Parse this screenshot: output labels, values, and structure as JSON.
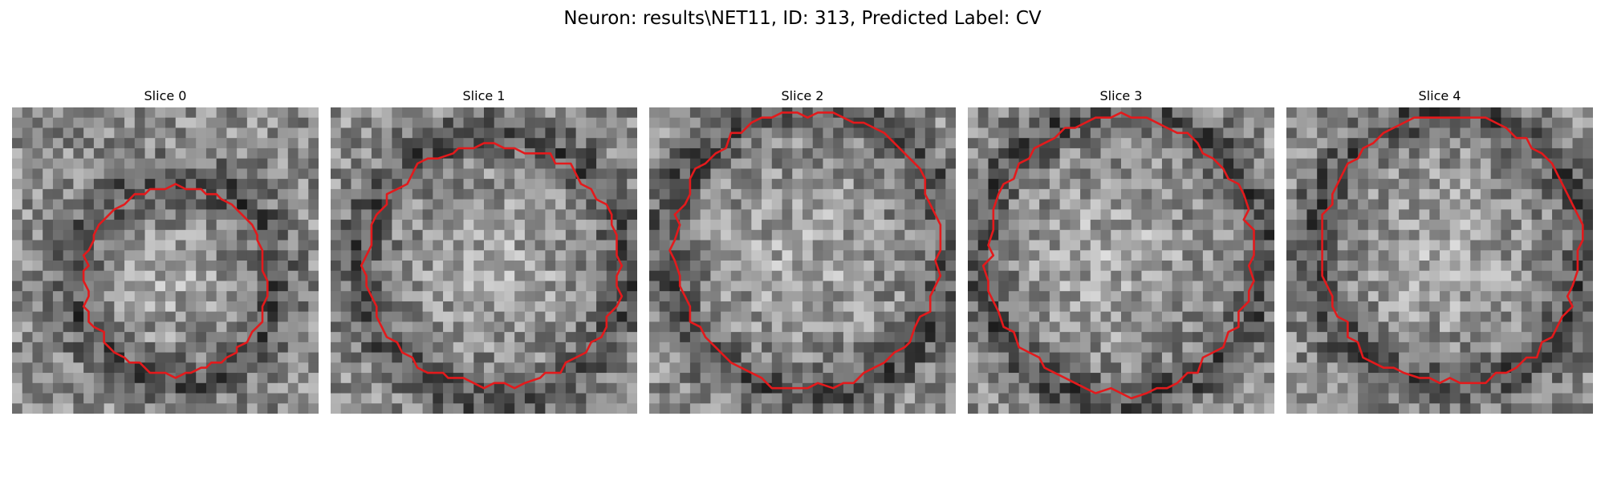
{
  "figure": {
    "title": "Neuron: results\\NET11, ID: 313, Predicted Label: CV",
    "contour_color": "#e31a1c",
    "colormap": "gray",
    "grid": "30x30 pixels per slice",
    "panels": [
      {
        "title": "Slice 0",
        "center": [
          16.0,
          17.0
        ],
        "radii": [
          9.0,
          9.2
        ],
        "bright_zone": [
          15.0,
          17.0,
          6.5
        ],
        "dark_ring": [
          16.0,
          17.0,
          10.0
        ]
      },
      {
        "title": "Slice 1",
        "center": [
          16.0,
          15.5
        ],
        "radii": [
          12.5,
          11.8
        ],
        "bright_zone": [
          16.0,
          16.0,
          8.5
        ],
        "dark_ring": [
          16.0,
          15.5,
          13.0
        ]
      },
      {
        "title": "Slice 2",
        "center": [
          15.5,
          14.0
        ],
        "radii": [
          13.0,
          13.5
        ],
        "bright_zone": [
          15.0,
          15.0,
          9.5
        ],
        "dark_ring": [
          15.5,
          14.0,
          14.0
        ]
      },
      {
        "title": "Slice 3",
        "center": [
          15.0,
          14.5
        ],
        "radii": [
          13.0,
          13.5
        ],
        "bright_zone": [
          14.0,
          14.5,
          10.0
        ],
        "dark_ring": [
          15.0,
          14.5,
          14.0
        ]
      },
      {
        "title": "Slice 4",
        "center": [
          16.0,
          14.0
        ],
        "radii": [
          12.8,
          13.0
        ],
        "bright_zone": [
          15.5,
          14.5,
          9.5
        ],
        "dark_ring": [
          16.0,
          14.0,
          13.5
        ]
      }
    ]
  }
}
